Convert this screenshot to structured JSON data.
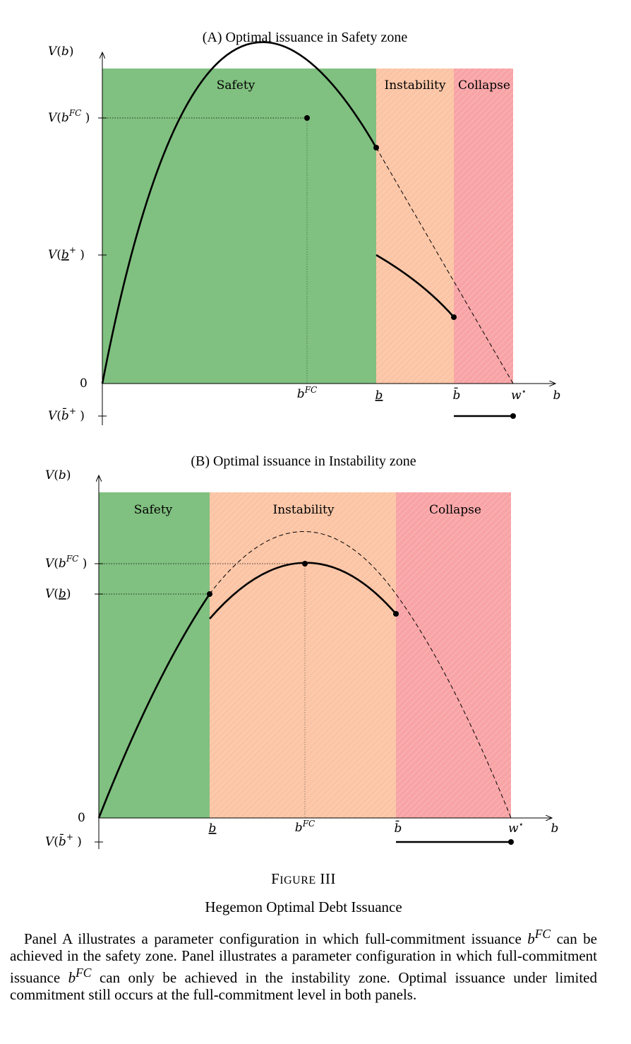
{
  "figure": {
    "label": "Figure III",
    "title": "Hegemon Optimal Debt Issuance",
    "caption": "Panel A illustrates a parameter configuration in which full-commitment issuance bFC can be achieved in the safety zone. Panel illustrates a parameter configuration in which full-commitment issuance bFC can only be achieved in the instability zone. Optimal issuance under limited commitment still occurs at the full-commitment level in both panels."
  },
  "colors": {
    "safety": "#80c080",
    "instability": "#fbc4a4",
    "collapse": "#f8a3a5",
    "curve": "#000000"
  },
  "chart_data": [
    {
      "type": "line",
      "title": "(A) Optimal issuance in Safety zone",
      "ylabel": "V(b)",
      "xlabel": "b",
      "zones": [
        "Safety",
        "Instability",
        "Collapse"
      ],
      "x_ticks": [
        "bFC",
        "b̲",
        "b̄",
        "w⋆"
      ],
      "y_ticks": [
        "V(bFC)",
        "V(b̲+)",
        "0",
        "V(b̄+)"
      ],
      "x_tick_positions": [
        0.5,
        0.667,
        0.857,
        1.0
      ],
      "xlim": [
        0,
        1.1
      ],
      "ylim": [
        -0.15,
        1.18
      ],
      "series": [
        {
          "style": "solid",
          "x": [
            0,
            0.1,
            0.2,
            0.3,
            0.4,
            0.5,
            0.6,
            0.667
          ],
          "y": [
            0,
            0.36,
            0.64,
            0.84,
            0.96,
            1.0,
            0.96,
            0.889
          ]
        },
        {
          "style": "dashed",
          "x": [
            0.667,
            0.75,
            0.857,
            0.93,
            1.0
          ],
          "y": [
            0.889,
            0.75,
            0.49,
            0.26,
            0
          ]
        },
        {
          "style": "solid",
          "x": [
            0.667,
            0.75,
            0.857
          ],
          "y": [
            0.48,
            0.4,
            0.25
          ]
        },
        {
          "style": "solid",
          "x": [
            0.857,
            1.0
          ],
          "y": [
            -0.12,
            -0.12
          ]
        }
      ]
    },
    {
      "type": "line",
      "title": "(B) Optimal issuance in Instability zone",
      "ylabel": "V(b)",
      "xlabel": "b",
      "zones": [
        "Safety",
        "Instability",
        "Collapse"
      ],
      "x_ticks": [
        "b̲",
        "bFC",
        "b̄",
        "w⋆"
      ],
      "y_ticks": [
        "V(bFC)",
        "V(b̲)",
        "0",
        "V(b̄+)"
      ],
      "x_tick_positions": [
        0.27,
        0.5,
        0.72,
        1.0
      ],
      "xlim": [
        0,
        1.1
      ],
      "ylim": [
        -0.1,
        1.1
      ],
      "series": [
        {
          "style": "solid",
          "x": [
            0,
            0.1,
            0.2,
            0.27
          ],
          "y": [
            0,
            0.36,
            0.64,
            0.788
          ]
        },
        {
          "style": "dashed",
          "x": [
            0.27,
            0.4,
            0.5,
            0.6,
            0.72,
            0.85,
            1.0
          ],
          "y": [
            0.788,
            0.96,
            1.0,
            0.96,
            0.806,
            0.51,
            0
          ]
        },
        {
          "style": "solid",
          "x": [
            0.27,
            0.4,
            0.5,
            0.6,
            0.72
          ],
          "y": [
            0.69,
            0.837,
            0.874,
            0.837,
            0.715
          ]
        },
        {
          "style": "solid",
          "x": [
            0.72,
            1.0
          ],
          "y": [
            -0.08,
            -0.08
          ]
        }
      ]
    }
  ]
}
